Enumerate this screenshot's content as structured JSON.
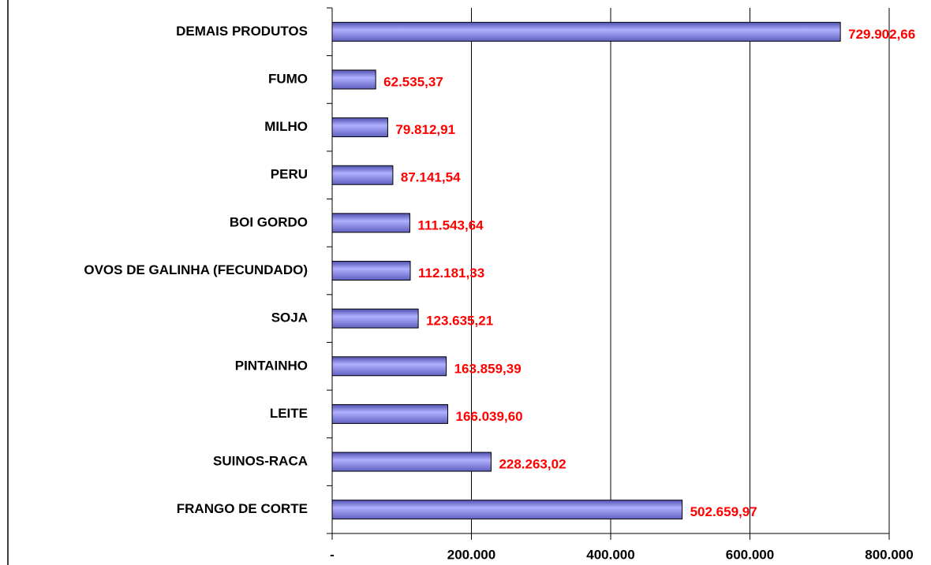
{
  "chart_data": {
    "type": "bar",
    "orientation": "horizontal",
    "categories": [
      "DEMAIS PRODUTOS",
      "FUMO",
      "MILHO",
      "PERU",
      "BOI GORDO",
      "OVOS DE GALINHA (FECUNDADO)",
      "SOJA",
      "PINTAINHO",
      "LEITE",
      "SUINOS-RACA",
      "FRANGO DE CORTE"
    ],
    "values": [
      729902.66,
      62535.37,
      79812.91,
      87141.54,
      111543.64,
      112181.33,
      123635.21,
      163859.39,
      166039.6,
      228263.02,
      502659.97
    ],
    "value_labels": [
      "729.902,66",
      "62.535,37",
      "79.812,91",
      "87.141,54",
      "111.543,64",
      "112.181,33",
      "123.635,21",
      "163.859,39",
      "166.039,60",
      "228.263,02",
      "502.659,97"
    ],
    "color": "#8080f0",
    "label_color": "#ff0000",
    "xlim": [
      0,
      800000
    ],
    "xticks": [
      {
        "value": 0,
        "label": "-"
      },
      {
        "value": 200000,
        "label": "200.000"
      },
      {
        "value": 400000,
        "label": "400.000"
      },
      {
        "value": 600000,
        "label": "600.000"
      },
      {
        "value": 800000,
        "label": "800.000"
      }
    ],
    "grid": true
  }
}
